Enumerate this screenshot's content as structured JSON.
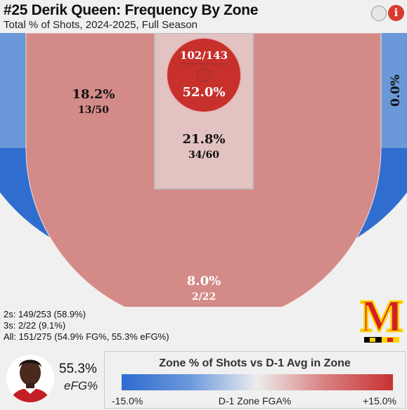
{
  "header": {
    "title": "#25 Derik Queen: Frequency By Zone",
    "subtitle": "Total % of Shots, 2024-2025, Full Season"
  },
  "chart_data": {
    "type": "heatmap",
    "zones": [
      {
        "name": "rim",
        "pct_label": "52.0%",
        "made_attempts": "102/143",
        "pct": 52.0,
        "made": 102,
        "attempts": 143
      },
      {
        "name": "paint",
        "pct_label": "21.8%",
        "made_attempts": "34/60",
        "pct": 21.8,
        "made": 34,
        "attempts": 60
      },
      {
        "name": "mid-range",
        "pct_label": "18.2%",
        "made_attempts": "13/50",
        "pct": 18.2,
        "made": 13,
        "attempts": 50
      },
      {
        "name": "corner-three",
        "pct_label": "0.0%",
        "made_attempts": "",
        "pct": 0.0
      },
      {
        "name": "above-break-three",
        "pct_label": "8.0%",
        "made_attempts": "2/22",
        "pct": 8.0,
        "made": 2,
        "attempts": 22
      }
    ],
    "colors": {
      "rim": "#c8302c",
      "paint": "#e3c2c2",
      "mid-range": "#d48a87",
      "corner-three": "#6a98d8",
      "above-break-three": "#2f6dcf"
    },
    "legend": {
      "title": "Zone % of Shots vs D-1 Avg in Zone",
      "min_label": "-15.0%",
      "max_label": "+15.0%",
      "axis_label": "D-1 Zone FGA%"
    }
  },
  "stats": {
    "twos": "2s: 149/253 (58.9%)",
    "threes": "3s: 2/22 (9.1%)",
    "all": "All: 151/275 (54.9% FG%, 55.3% eFG%)"
  },
  "player": {
    "efg_value": "55.3%",
    "efg_label": "eFG%",
    "logo_letter": "M"
  }
}
